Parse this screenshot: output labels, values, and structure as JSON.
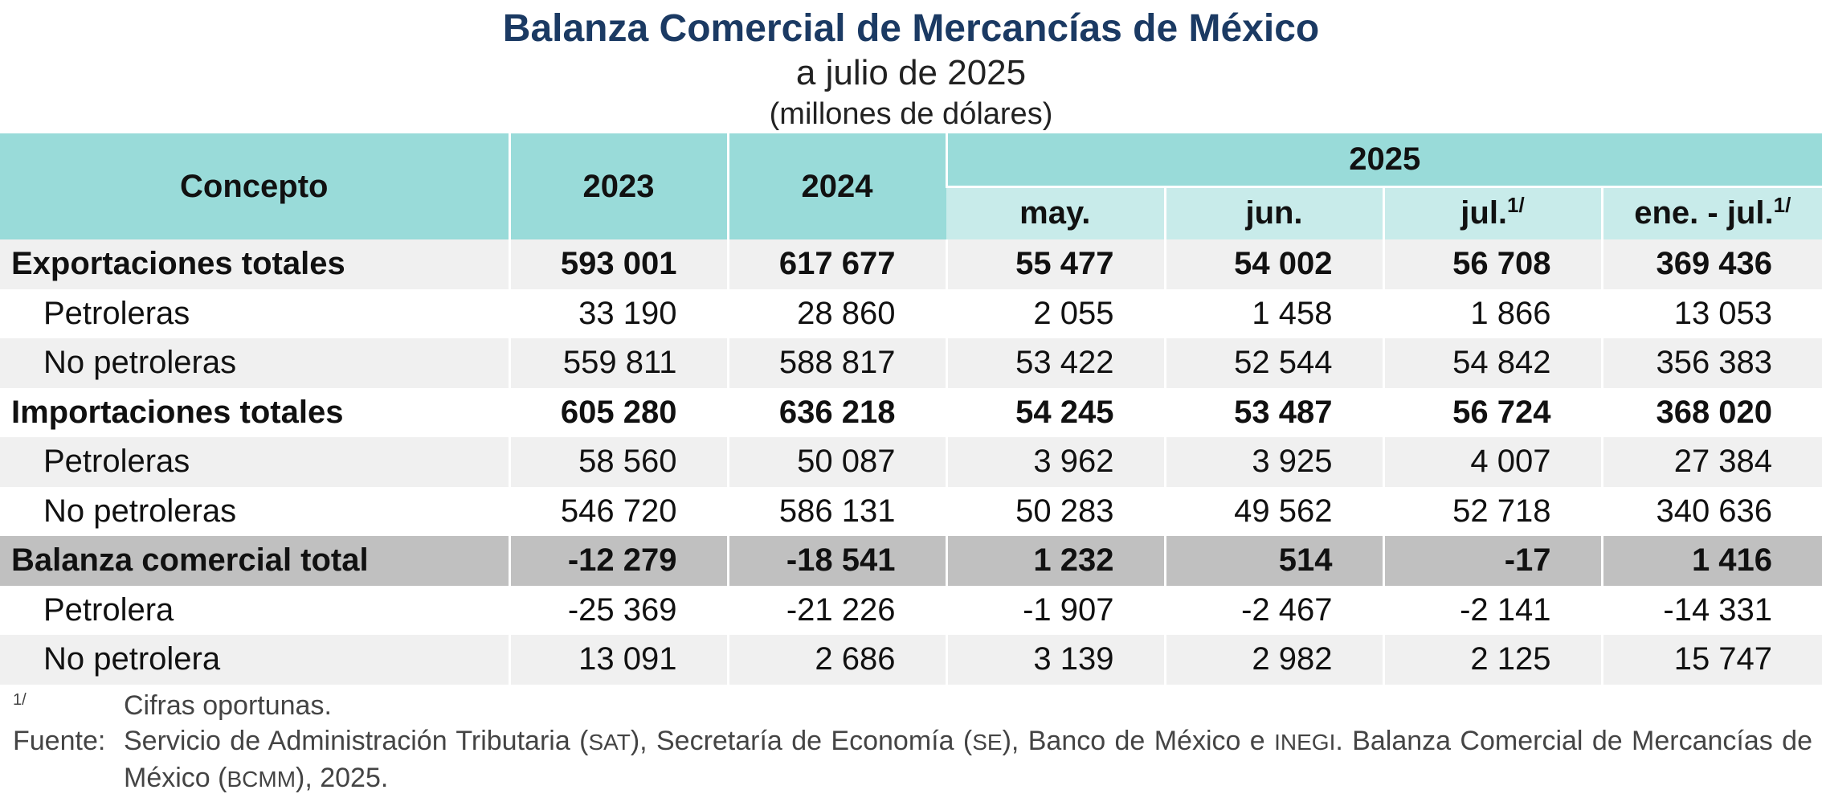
{
  "title": "Balanza Comercial de Mercancías de México",
  "subtitle": "a julio de 2025",
  "units": "(millones de dólares)",
  "header": {
    "concept": "Concepto",
    "y2023": "2023",
    "y2024": "2024",
    "y2025": "2025",
    "months": [
      "may.",
      "jun.",
      "jul.",
      "ene. - jul."
    ],
    "footnote_mark": "1/"
  },
  "rows": [
    {
      "label": "Exportaciones totales",
      "values": [
        "593 001",
        "617 677",
        "55 477",
        "54 002",
        "56 708",
        "369 436"
      ]
    },
    {
      "label": "Petroleras",
      "values": [
        "33 190",
        "28 860",
        "2 055",
        "1 458",
        "1 866",
        "13 053"
      ]
    },
    {
      "label": "No petroleras",
      "values": [
        "559 811",
        "588 817",
        "53 422",
        "52 544",
        "54 842",
        "356 383"
      ]
    },
    {
      "label": "Importaciones totales",
      "values": [
        "605 280",
        "636 218",
        "54 245",
        "53 487",
        "56 724",
        "368 020"
      ]
    },
    {
      "label": "Petroleras",
      "values": [
        "58 560",
        "50 087",
        "3 962",
        "3 925",
        "4 007",
        "27 384"
      ]
    },
    {
      "label": "No petroleras",
      "values": [
        "546 720",
        "586 131",
        "50 283",
        "49 562",
        "52 718",
        "340 636"
      ]
    },
    {
      "label": "Balanza comercial total",
      "values": [
        "-12 279",
        "-18 541",
        "1 232",
        "514",
        "-17",
        "1 416"
      ]
    },
    {
      "label": "Petrolera",
      "values": [
        "-25 369",
        "-21 226",
        "-1 907",
        "-2 467",
        "-2 141",
        "-14 331"
      ]
    },
    {
      "label": "No petrolera",
      "values": [
        "13 091",
        "2 686",
        "3 139",
        "2 982",
        "2 125",
        "15 747"
      ]
    }
  ],
  "notes": {
    "footnote_key": "1/",
    "footnote_text": "Cifras oportunas.",
    "source_key": "Fuente:",
    "source_parts": {
      "a": "Servicio de Administración Tributaria (",
      "sat": "SAT",
      "b": "), Secretaría de Economía (",
      "se": "SE",
      "c": "), Banco de México e ",
      "inegi": "INEGI",
      "d": ". Balanza Comercial de Mercancías de México (",
      "bcmm": "BCMM",
      "e": "), 2025."
    }
  }
}
